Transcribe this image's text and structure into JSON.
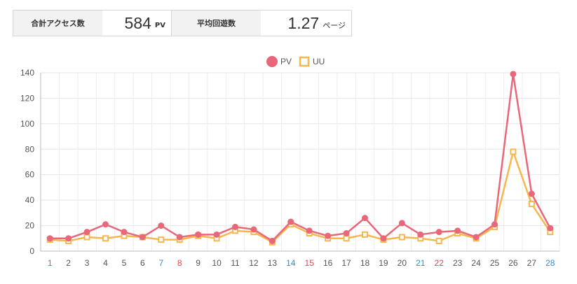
{
  "summary": {
    "total_access_label": "合計アクセス数",
    "total_access_value": "584",
    "total_access_unit": "PV",
    "avg_visits_label": "平均回遊数",
    "avg_visits_value": "1.27",
    "avg_visits_unit": "ページ"
  },
  "chart_data": {
    "type": "line",
    "x": [
      "1",
      "2",
      "3",
      "4",
      "5",
      "6",
      "7",
      "8",
      "9",
      "10",
      "11",
      "12",
      "13",
      "14",
      "15",
      "16",
      "17",
      "18",
      "19",
      "20",
      "21",
      "22",
      "23",
      "24",
      "25",
      "26",
      "27",
      "28"
    ],
    "x_label_colors": [
      "#e0475c",
      "#555555",
      "#555555",
      "#555555",
      "#555555",
      "#555555",
      "#2a8fd8",
      "#e0475c",
      "#555555",
      "#555555",
      "#555555",
      "#555555",
      "#555555",
      "#2a8fd8",
      "#e0475c",
      "#555555",
      "#555555",
      "#555555",
      "#555555",
      "#555555",
      "#2a8fd8",
      "#e0475c",
      "#555555",
      "#555555",
      "#555555",
      "#555555",
      "#555555",
      "#2a8fd8"
    ],
    "ylim": [
      0,
      140
    ],
    "yticks": [
      0,
      20,
      40,
      60,
      80,
      100,
      120,
      140
    ],
    "grid": true,
    "legend_position": "top-center",
    "series": [
      {
        "name": "PV",
        "color": "#e8687a",
        "marker": "circle",
        "values": [
          10,
          10,
          15,
          21,
          15,
          11,
          20,
          11,
          13,
          13,
          19,
          17,
          8,
          23,
          16,
          12,
          14,
          26,
          10,
          22,
          13,
          15,
          16,
          11,
          21,
          139,
          45,
          18
        ]
      },
      {
        "name": "UU",
        "color": "#f5b74e",
        "marker": "square",
        "values": [
          9,
          8,
          11,
          10,
          12,
          11,
          9,
          9,
          12,
          10,
          16,
          15,
          7,
          21,
          14,
          10,
          10,
          13,
          9,
          11,
          10,
          8,
          14,
          10,
          19,
          78,
          37,
          15
        ]
      }
    ]
  }
}
